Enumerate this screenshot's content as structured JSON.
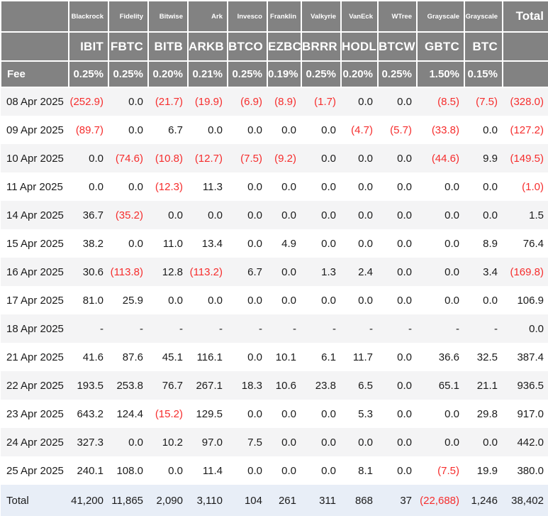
{
  "colors": {
    "header_bg": "#828282",
    "header_text": "#ffffff",
    "body_text": "#1b1b1b",
    "negative_red": "#f62d2d",
    "stripe_bg": "#f4f4f5",
    "total_row_bg": "#e8eef7",
    "page_bg": "#ffffff"
  },
  "chart_data": {
    "type": "table",
    "providers": [
      "Blackrock",
      "Fidelity",
      "Bitwise",
      "Ark",
      "Invesco",
      "Franklin",
      "Valkyrie",
      "VanEck",
      "WTree",
      "Grayscale",
      "Grayscale"
    ],
    "tickers": [
      "IBIT",
      "FBTC",
      "BITB",
      "ARKB",
      "BTCO",
      "EZBC",
      "BRRR",
      "HODL",
      "BTCW",
      "GBTC",
      "BTC"
    ],
    "total_header": "Total",
    "fee_label": "Fee",
    "fees": [
      "0.25%",
      "0.25%",
      "0.20%",
      "0.21%",
      "0.25%",
      "0.19%",
      "0.25%",
      "0.20%",
      "0.25%",
      "1.50%",
      "0.15%"
    ],
    "rows": [
      {
        "date": "08 Apr 2025",
        "values": [
          "(252.9)",
          "0.0",
          "(21.7)",
          "(19.9)",
          "(6.9)",
          "(8.9)",
          "(1.7)",
          "0.0",
          "0.0",
          "(8.5)",
          "(7.5)",
          "(328.0)"
        ]
      },
      {
        "date": "09 Apr 2025",
        "values": [
          "(89.7)",
          "0.0",
          "6.7",
          "0.0",
          "0.0",
          "0.0",
          "0.0",
          "(4.7)",
          "(5.7)",
          "(33.8)",
          "0.0",
          "(127.2)"
        ]
      },
      {
        "date": "10 Apr 2025",
        "values": [
          "0.0",
          "(74.6)",
          "(10.8)",
          "(12.7)",
          "(7.5)",
          "(9.2)",
          "0.0",
          "0.0",
          "0.0",
          "(44.6)",
          "9.9",
          "(149.5)"
        ]
      },
      {
        "date": "11 Apr 2025",
        "values": [
          "0.0",
          "0.0",
          "(12.3)",
          "11.3",
          "0.0",
          "0.0",
          "0.0",
          "0.0",
          "0.0",
          "0.0",
          "0.0",
          "(1.0)"
        ]
      },
      {
        "date": "14 Apr 2025",
        "values": [
          "36.7",
          "(35.2)",
          "0.0",
          "0.0",
          "0.0",
          "0.0",
          "0.0",
          "0.0",
          "0.0",
          "0.0",
          "0.0",
          "1.5"
        ]
      },
      {
        "date": "15 Apr 2025",
        "values": [
          "38.2",
          "0.0",
          "11.0",
          "13.4",
          "0.0",
          "4.9",
          "0.0",
          "0.0",
          "0.0",
          "0.0",
          "8.9",
          "76.4"
        ]
      },
      {
        "date": "16 Apr 2025",
        "values": [
          "30.6",
          "(113.8)",
          "12.8",
          "(113.2)",
          "6.7",
          "0.0",
          "1.3",
          "2.4",
          "0.0",
          "0.0",
          "3.4",
          "(169.8)"
        ]
      },
      {
        "date": "17 Apr 2025",
        "values": [
          "81.0",
          "25.9",
          "0.0",
          "0.0",
          "0.0",
          "0.0",
          "0.0",
          "0.0",
          "0.0",
          "0.0",
          "0.0",
          "106.9"
        ]
      },
      {
        "date": "18 Apr 2025",
        "values": [
          "-",
          "-",
          "-",
          "-",
          "-",
          "-",
          "-",
          "-",
          "-",
          "-",
          "-",
          "0.0"
        ]
      },
      {
        "date": "21 Apr 2025",
        "values": [
          "41.6",
          "87.6",
          "45.1",
          "116.1",
          "0.0",
          "10.1",
          "6.1",
          "11.7",
          "0.0",
          "36.6",
          "32.5",
          "387.4"
        ]
      },
      {
        "date": "22 Apr 2025",
        "values": [
          "193.5",
          "253.8",
          "76.7",
          "267.1",
          "18.3",
          "10.6",
          "23.8",
          "6.5",
          "0.0",
          "65.1",
          "21.1",
          "936.5"
        ]
      },
      {
        "date": "23 Apr 2025",
        "values": [
          "643.2",
          "124.4",
          "(15.2)",
          "129.5",
          "0.0",
          "0.0",
          "0.0",
          "5.3",
          "0.0",
          "0.0",
          "29.8",
          "917.0"
        ]
      },
      {
        "date": "24 Apr 2025",
        "values": [
          "327.3",
          "0.0",
          "10.2",
          "97.0",
          "7.5",
          "0.0",
          "0.0",
          "0.0",
          "0.0",
          "0.0",
          "0.0",
          "442.0"
        ]
      },
      {
        "date": "25 Apr 2025",
        "values": [
          "240.1",
          "108.0",
          "0.0",
          "11.4",
          "0.0",
          "0.0",
          "0.0",
          "8.1",
          "0.0",
          "(7.5)",
          "19.9",
          "380.0"
        ]
      }
    ],
    "total_row": {
      "label": "Total",
      "values": [
        "41,200",
        "11,865",
        "2,090",
        "3,110",
        "104",
        "261",
        "311",
        "868",
        "37",
        "(22,688)",
        "1,246",
        "38,402"
      ]
    }
  }
}
